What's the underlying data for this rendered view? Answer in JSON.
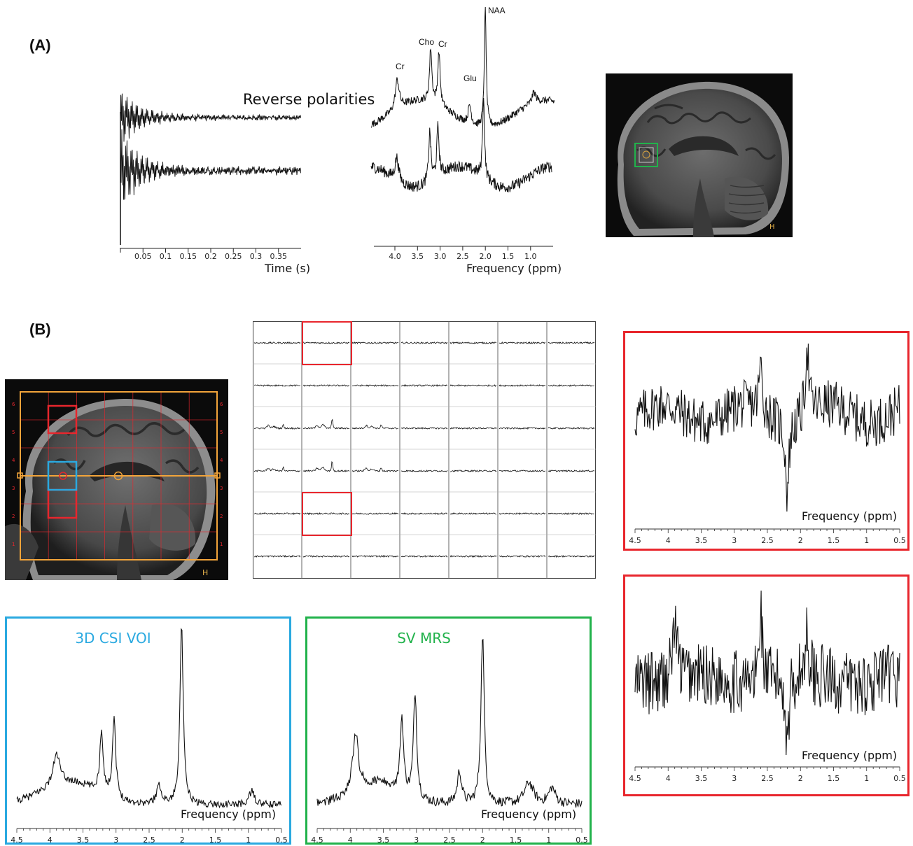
{
  "panels": {
    "a_label": "(A)",
    "b_label": "(B)"
  },
  "panel_a": {
    "reverse_text": "Reverse polarities",
    "time_xlabel": "Time (s)",
    "time_ticks": [
      "0.05",
      "0.1",
      "0.15",
      "0.2",
      "0.25",
      "0.3",
      "0.35"
    ],
    "freq_xlabel": "Frequency (ppm)",
    "freq_ticks": [
      "4.0",
      "3.5",
      "3.0",
      "2.5",
      "2.0",
      "1.5",
      "1.0"
    ],
    "peaks": [
      "Cr",
      "Cho",
      "Cr",
      "Glu",
      "NAA"
    ]
  },
  "panel_b": {
    "mri_marker": "H",
    "grid_row_labels": [
      "6",
      "5",
      "4",
      "3",
      "2",
      "1"
    ],
    "csi_title": "3D CSI VOI",
    "sv_title": "SV MRS",
    "freq_xlabel": "Frequency (ppm)",
    "ppm_ticks": [
      "4.5",
      "4",
      "3.5",
      "3",
      "2.5",
      "2",
      "1.5",
      "1",
      "0.5"
    ]
  },
  "colors": {
    "red": "#e8262d",
    "blue": "#2aa9e0",
    "green": "#21b24b",
    "orange": "#f2a43a"
  },
  "chart_data": [
    {
      "type": "line",
      "title": "",
      "xlabel": "Time (s)",
      "ylabel": "",
      "series": [],
      "x_ticks": [
        0.05,
        0.1,
        0.15,
        0.2,
        0.25,
        0.3,
        0.35
      ]
    },
    {
      "type": "line",
      "title": "",
      "xlabel": "Frequency (ppm)",
      "ylabel": "",
      "x_ticks": [
        4.0,
        3.5,
        3.0,
        2.5,
        2.0,
        1.5,
        1.0
      ],
      "annotations": [
        {
          "label": "Cr",
          "x": 3.9
        },
        {
          "label": "Cho",
          "x": 3.2
        },
        {
          "label": "Cr",
          "x": 3.0
        },
        {
          "label": "Glu",
          "x": 2.35
        },
        {
          "label": "NAA",
          "x": 2.01
        }
      ]
    },
    {
      "type": "line",
      "title": "3D CSI VOI",
      "xlabel": "Frequency (ppm)",
      "xlim": [
        4.5,
        0.5
      ]
    },
    {
      "type": "line",
      "title": "SV MRS",
      "xlabel": "Frequency (ppm)",
      "xlim": [
        4.5,
        0.5
      ]
    },
    {
      "type": "line",
      "title": "",
      "xlabel": "Frequency (ppm)",
      "xlim": [
        4.5,
        0.5
      ]
    },
    {
      "type": "line",
      "title": "",
      "xlabel": "Frequency (ppm)",
      "xlim": [
        4.5,
        0.5
      ]
    }
  ]
}
